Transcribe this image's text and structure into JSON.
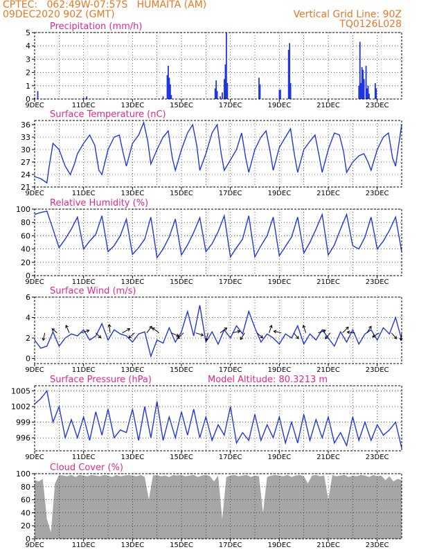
{
  "header": {
    "line1_left": "CPTEC:   062:49W-07:57S   HUMAITA (AM)",
    "line2_left": "09DEC2020 90Z (GMT)",
    "line2_right": "Vertical Grid Line: 90Z",
    "line3_right": "TQ0126L028"
  },
  "colors": {
    "header": "#e87722",
    "panel_title": "#e4268f",
    "series": "#1f35e0",
    "cloud": "#a6a6a6",
    "wind_vector": "#000000"
  },
  "chart_data": [
    {
      "id": "precipitation",
      "type": "bar",
      "title": "Precipitation  (mm/h)",
      "x_ticks": [
        "9DEC",
        "11DEC",
        "13DEC",
        "15DEC",
        "17DEC",
        "19DEC",
        "21DEC",
        "23DEC"
      ],
      "x_tick_hours": [
        0,
        48,
        96,
        144,
        192,
        240,
        288,
        336
      ],
      "x_range_hours": [
        0,
        360
      ],
      "ylim": [
        0,
        5
      ],
      "yticks": [
        0,
        1,
        2,
        3,
        4,
        5
      ],
      "grid": true,
      "bars_hours": [
        [
          0,
          0.1
        ],
        [
          3,
          0.6
        ],
        [
          48,
          0.1
        ],
        [
          51,
          0.2
        ],
        [
          126,
          0.2
        ],
        [
          130,
          1.8
        ],
        [
          131,
          2.5
        ],
        [
          132,
          1.6
        ],
        [
          133,
          1.1
        ],
        [
          134,
          0.3
        ],
        [
          177,
          0.8
        ],
        [
          178,
          1.4
        ],
        [
          179,
          0.6
        ],
        [
          182,
          0.2
        ],
        [
          184,
          0.5
        ],
        [
          186,
          1.5
        ],
        [
          187,
          2.6
        ],
        [
          188,
          5.0
        ],
        [
          189,
          1.2
        ],
        [
          220,
          1.6
        ],
        [
          221,
          1.1
        ],
        [
          240,
          0.7
        ],
        [
          241,
          0.7
        ],
        [
          249,
          3.7
        ],
        [
          250,
          4.2
        ],
        [
          251,
          1.2
        ],
        [
          318,
          1.0
        ],
        [
          319,
          4.3
        ],
        [
          320,
          1.2
        ],
        [
          321,
          2.4
        ],
        [
          322,
          2.2
        ],
        [
          323,
          1.5
        ],
        [
          325,
          2.5
        ],
        [
          326,
          0.8
        ],
        [
          327,
          1.0
        ],
        [
          328,
          0.4
        ],
        [
          334,
          1.2
        ],
        [
          335,
          0.8
        ]
      ]
    },
    {
      "id": "temperature",
      "type": "line",
      "title": "Surface Temperature  (nC)",
      "ylim": [
        21,
        37
      ],
      "yticks": [
        21,
        24,
        27,
        30,
        33,
        36
      ],
      "grid": true,
      "x_ticks": [
        "9DEC",
        "11DEC",
        "13DEC",
        "15DEC",
        "17DEC",
        "19DEC",
        "21DEC",
        "23DEC"
      ],
      "x_tick_hours": [
        0,
        48,
        96,
        144,
        192,
        240,
        288,
        336
      ],
      "x_range_hours": [
        0,
        360
      ],
      "x_hours": [
        0,
        6,
        12,
        14,
        18,
        24,
        30,
        35,
        39,
        42,
        48,
        54,
        59,
        63,
        66,
        72,
        78,
        83,
        87,
        90,
        96,
        102,
        107,
        111,
        114,
        120,
        126,
        131,
        135,
        138,
        144,
        150,
        155,
        159,
        162,
        168,
        174,
        179,
        183,
        186,
        192,
        198,
        203,
        207,
        210,
        216,
        222,
        227,
        231,
        234,
        240,
        246,
        251,
        255,
        258,
        264,
        270,
        275,
        279,
        282,
        288,
        294,
        299,
        303,
        306,
        312,
        318,
        323,
        327,
        330,
        336,
        342,
        347,
        351,
        354,
        360
      ],
      "y": [
        23.5,
        23.0,
        22.0,
        25.5,
        31.5,
        30.0,
        26.0,
        24.0,
        26.5,
        29.0,
        31.5,
        33.5,
        31.0,
        25.0,
        24.0,
        30.0,
        33.0,
        33.5,
        29.0,
        26.0,
        31.5,
        33.5,
        36.5,
        32.0,
        26.5,
        30.0,
        33.0,
        34.5,
        28.0,
        25.0,
        30.0,
        34.0,
        36.0,
        31.0,
        25.0,
        29.0,
        34.0,
        36.0,
        29.0,
        25.0,
        27.5,
        30.0,
        34.0,
        28.0,
        24.5,
        30.0,
        33.0,
        34.5,
        29.5,
        25.0,
        30.5,
        33.0,
        35.0,
        28.5,
        24.5,
        30.0,
        32.0,
        33.5,
        28.5,
        24.5,
        30.0,
        34.0,
        33.5,
        29.5,
        24.5,
        27.0,
        28.5,
        29.0,
        27.0,
        25.0,
        30.0,
        33.0,
        34.0,
        28.0,
        26.0,
        36.0
      ]
    },
    {
      "id": "humidity",
      "type": "line",
      "title": "Relative Humidity  (%)",
      "ylim": [
        0,
        100
      ],
      "yticks": [
        0,
        20,
        40,
        60,
        80,
        100
      ],
      "grid": true,
      "x_ticks": [
        "9DEC",
        "11DEC",
        "13DEC",
        "15DEC",
        "17DEC",
        "19DEC",
        "21DEC",
        "23DEC"
      ],
      "x_tick_hours": [
        0,
        48,
        96,
        144,
        192,
        240,
        288,
        336
      ],
      "x_range_hours": [
        0,
        360
      ],
      "x_hours": [
        0,
        6,
        12,
        18,
        24,
        30,
        36,
        42,
        48,
        54,
        60,
        66,
        72,
        78,
        84,
        90,
        96,
        102,
        108,
        114,
        120,
        126,
        132,
        138,
        144,
        150,
        156,
        162,
        168,
        174,
        180,
        186,
        192,
        198,
        204,
        210,
        216,
        222,
        228,
        234,
        240,
        246,
        252,
        258,
        264,
        270,
        276,
        282,
        288,
        294,
        300,
        306,
        312,
        318,
        324,
        330,
        336,
        342,
        348,
        354,
        360
      ],
      "y": [
        92,
        95,
        97,
        70,
        42,
        55,
        70,
        88,
        40,
        52,
        62,
        90,
        36,
        45,
        60,
        85,
        32,
        42,
        55,
        88,
        27,
        40,
        58,
        85,
        31,
        46,
        65,
        87,
        36,
        48,
        66,
        90,
        28,
        42,
        55,
        90,
        28,
        45,
        60,
        88,
        30,
        44,
        58,
        88,
        34,
        50,
        70,
        92,
        31,
        46,
        70,
        92,
        45,
        40,
        58,
        88,
        40,
        52,
        68,
        88,
        36
      ]
    },
    {
      "id": "wind",
      "type": "line",
      "title": "Surface Wind  (m/s)",
      "ylim": [
        -0.5,
        6
      ],
      "yticks": [
        0,
        2,
        4,
        6
      ],
      "grid": true,
      "x_ticks": [
        "9DEC",
        "11DEC",
        "13DEC",
        "15DEC",
        "17DEC",
        "19DEC",
        "21DEC",
        "23DEC"
      ],
      "x_tick_hours": [
        0,
        48,
        96,
        144,
        192,
        240,
        288,
        336
      ],
      "x_range_hours": [
        0,
        360
      ],
      "x_hours": [
        0,
        6,
        12,
        18,
        24,
        30,
        36,
        42,
        48,
        54,
        60,
        66,
        72,
        78,
        84,
        90,
        96,
        102,
        108,
        114,
        120,
        126,
        132,
        138,
        144,
        150,
        156,
        162,
        168,
        174,
        180,
        186,
        192,
        198,
        204,
        210,
        216,
        222,
        228,
        234,
        240,
        246,
        252,
        258,
        264,
        270,
        276,
        282,
        288,
        294,
        300,
        306,
        312,
        318,
        324,
        330,
        336,
        342,
        348,
        354,
        360
      ],
      "y": [
        1.8,
        1.0,
        1.2,
        2.6,
        1.2,
        2.0,
        2.4,
        2.2,
        2.8,
        1.8,
        2.2,
        3.4,
        1.8,
        2.8,
        2.4,
        2.2,
        1.6,
        2.4,
        2.6,
        0.2,
        1.8,
        1.5,
        3.0,
        1.6,
        2.6,
        4.6,
        2.2,
        5.2,
        1.6,
        2.6,
        1.4,
        2.8,
        2.0,
        3.2,
        2.4,
        4.6,
        3.0,
        1.6,
        2.4,
        2.0,
        1.4,
        2.4,
        2.0,
        3.2,
        1.4,
        2.4,
        1.8,
        2.8,
        2.0,
        1.2,
        2.6,
        1.6,
        2.8,
        1.4,
        2.4,
        2.8,
        1.8,
        3.0,
        2.4,
        4.0,
        1.8
      ],
      "vectors": [
        {
          "h": 10,
          "u": -0.2,
          "v": -0.9
        },
        {
          "h": 22,
          "u": -0.6,
          "v": 0.5
        },
        {
          "h": 34,
          "u": -0.4,
          "v": 0.9
        },
        {
          "h": 46,
          "u": 0.9,
          "v": 0.3
        },
        {
          "h": 60,
          "u": 0.6,
          "v": -0.6
        },
        {
          "h": 74,
          "u": -0.1,
          "v": 1.0
        },
        {
          "h": 86,
          "u": 0.9,
          "v": 0.5
        },
        {
          "h": 98,
          "u": -0.7,
          "v": -0.6
        },
        {
          "h": 110,
          "u": 0.6,
          "v": 0.8
        },
        {
          "h": 122,
          "u": -0.8,
          "v": 0.6
        },
        {
          "h": 134,
          "u": 0.9,
          "v": -0.4
        },
        {
          "h": 146,
          "u": -0.7,
          "v": -0.7
        },
        {
          "h": 158,
          "u": 0.9,
          "v": -0.3
        },
        {
          "h": 170,
          "u": -0.2,
          "v": -0.9
        },
        {
          "h": 182,
          "u": 0.8,
          "v": 0.6
        },
        {
          "h": 194,
          "u": 0.9,
          "v": 0.2
        },
        {
          "h": 206,
          "u": -0.5,
          "v": -0.8
        },
        {
          "h": 218,
          "u": 0.7,
          "v": -0.6
        },
        {
          "h": 230,
          "u": 0.3,
          "v": 0.9
        },
        {
          "h": 242,
          "u": -0.9,
          "v": 0.2
        },
        {
          "h": 254,
          "u": 0.6,
          "v": -0.7
        },
        {
          "h": 266,
          "u": -0.3,
          "v": 0.9
        },
        {
          "h": 278,
          "u": 0.9,
          "v": 0.3
        },
        {
          "h": 290,
          "u": -0.6,
          "v": -0.7
        },
        {
          "h": 302,
          "u": 0.7,
          "v": 0.7
        },
        {
          "h": 314,
          "u": -0.9,
          "v": 0.1
        },
        {
          "h": 326,
          "u": 0.5,
          "v": 0.8
        },
        {
          "h": 338,
          "u": -0.8,
          "v": -0.5
        },
        {
          "h": 350,
          "u": 0.6,
          "v": -0.7
        },
        {
          "h": 360,
          "u": -0.1,
          "v": -0.9
        }
      ]
    },
    {
      "id": "pressure",
      "type": "line",
      "title": "Surface Pressure  (hPa)",
      "annotation": "Model Altitude: 80.3213 m",
      "ylim": [
        993.5,
        1006
      ],
      "yticks": [
        996,
        999,
        1002,
        1005
      ],
      "grid": true,
      "x_ticks": [
        "9DEC",
        "11DEC",
        "13DEC",
        "15DEC",
        "17DEC",
        "19DEC",
        "21DEC",
        "23DEC"
      ],
      "x_tick_hours": [
        0,
        48,
        96,
        144,
        192,
        240,
        288,
        336
      ],
      "x_range_hours": [
        0,
        360
      ],
      "x_hours": [
        0,
        6,
        12,
        18,
        24,
        30,
        36,
        42,
        48,
        54,
        60,
        66,
        72,
        78,
        84,
        90,
        96,
        102,
        108,
        114,
        120,
        126,
        132,
        138,
        144,
        150,
        156,
        162,
        168,
        174,
        180,
        186,
        192,
        198,
        204,
        210,
        216,
        222,
        228,
        234,
        240,
        246,
        252,
        258,
        264,
        270,
        276,
        282,
        288,
        294,
        300,
        306,
        312,
        318,
        324,
        330,
        336,
        342,
        348,
        354,
        360
      ],
      "y": [
        1002.5,
        1003.5,
        1005.0,
        999.0,
        1002.0,
        996.0,
        999.5,
        996.0,
        1000.0,
        995.5,
        1001.0,
        996.5,
        1001.5,
        996.0,
        997.5,
        997.0,
        1001.5,
        995.5,
        1002.0,
        996.0,
        1003.0,
        995.5,
        1000.0,
        996.0,
        1001.0,
        996.5,
        1001.5,
        996.0,
        1000.0,
        995.5,
        998.5,
        996.5,
        1002.0,
        995.0,
        997.0,
        995.5,
        1000.5,
        995.5,
        998.5,
        996.0,
        1000.0,
        995.0,
        999.0,
        995.0,
        1000.5,
        995.5,
        999.5,
        996.0,
        1000.0,
        995.0,
        997.0,
        994.5,
        1000.0,
        995.5,
        999.0,
        995.5,
        998.5,
        996.5,
        997.5,
        999.0,
        994.0
      ]
    },
    {
      "id": "cloud",
      "type": "area",
      "title": "Cloud Cover  (%)",
      "ylim": [
        0,
        100
      ],
      "yticks": [
        0,
        20,
        40,
        60,
        80,
        100
      ],
      "grid": true,
      "x_ticks": [
        "9DEC",
        "11DEC",
        "13DEC",
        "15DEC",
        "17DEC",
        "19DEC",
        "21DEC",
        "23DEC"
      ],
      "x_tick_hours": [
        0,
        48,
        96,
        144,
        192,
        240,
        288,
        336
      ],
      "x_range_hours": [
        0,
        360
      ],
      "x_hours": [
        0,
        4,
        8,
        12,
        16,
        20,
        24,
        28,
        32,
        36,
        40,
        44,
        48,
        52,
        56,
        60,
        64,
        68,
        72,
        76,
        80,
        84,
        88,
        92,
        96,
        100,
        104,
        108,
        112,
        116,
        120,
        124,
        128,
        132,
        136,
        140,
        144,
        148,
        152,
        156,
        160,
        164,
        168,
        172,
        176,
        180,
        184,
        188,
        192,
        196,
        200,
        204,
        208,
        212,
        216,
        220,
        224,
        228,
        232,
        236,
        240,
        244,
        248,
        252,
        256,
        260,
        264,
        268,
        272,
        276,
        280,
        284,
        288,
        292,
        296,
        300,
        304,
        308,
        312,
        316,
        320,
        324,
        328,
        332,
        336,
        340,
        344,
        348,
        352,
        356,
        360
      ],
      "y": [
        90,
        88,
        92,
        30,
        10,
        85,
        98,
        97,
        96,
        98,
        95,
        98,
        97,
        96,
        98,
        97,
        96,
        98,
        97,
        95,
        98,
        96,
        97,
        98,
        97,
        96,
        98,
        95,
        60,
        97,
        98,
        96,
        97,
        95,
        98,
        97,
        98,
        96,
        97,
        98,
        95,
        97,
        98,
        96,
        88,
        97,
        30,
        95,
        97,
        98,
        96,
        97,
        98,
        95,
        97,
        96,
        40,
        95,
        97,
        98,
        97,
        96,
        98,
        95,
        97,
        98,
        96,
        85,
        97,
        98,
        96,
        97,
        60,
        98,
        96,
        97,
        98,
        95,
        97,
        96,
        98,
        97,
        95,
        98,
        96,
        97,
        90,
        96,
        88,
        92,
        90
      ]
    }
  ]
}
